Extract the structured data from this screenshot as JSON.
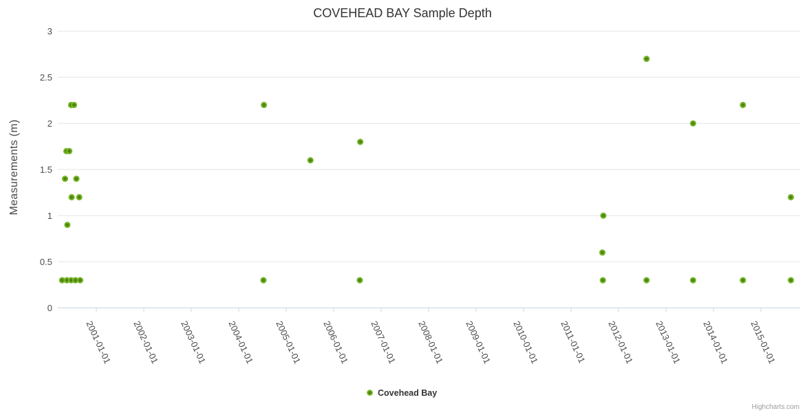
{
  "chart_data": {
    "type": "scatter",
    "title": "COVEHEAD BAY Sample Depth",
    "xlabel": "",
    "ylabel": "Measurements (m)",
    "xlim": [
      2000.2,
      2016.35
    ],
    "ylim": [
      0,
      3
    ],
    "grid": "horizontal-only",
    "legend_position": "bottom-center",
    "x_ticks": [
      {
        "year": 2001,
        "label": "2001-01-01"
      },
      {
        "year": 2002,
        "label": "2002-01-01"
      },
      {
        "year": 2003,
        "label": "2003-01-01"
      },
      {
        "year": 2004,
        "label": "2004-01-01"
      },
      {
        "year": 2005,
        "label": "2005-01-01"
      },
      {
        "year": 2006,
        "label": "2006-01-01"
      },
      {
        "year": 2007,
        "label": "2007-01-01"
      },
      {
        "year": 2008,
        "label": "2008-01-01"
      },
      {
        "year": 2009,
        "label": "2009-01-01"
      },
      {
        "year": 2010,
        "label": "2010-01-01"
      },
      {
        "year": 2011,
        "label": "2011-01-01"
      },
      {
        "year": 2012,
        "label": "2012-01-01"
      },
      {
        "year": 2013,
        "label": "2013-01-01"
      },
      {
        "year": 2014,
        "label": "2014-01-01"
      },
      {
        "year": 2015,
        "label": "2015-01-01"
      }
    ],
    "y_ticks": [
      {
        "value": 0,
        "label": "0"
      },
      {
        "value": 0.5,
        "label": "0.5"
      },
      {
        "value": 1,
        "label": "1"
      },
      {
        "value": 1.5,
        "label": "1.5"
      },
      {
        "value": 2,
        "label": "2"
      },
      {
        "value": 2.5,
        "label": "2.5"
      },
      {
        "value": 3,
        "label": "3"
      }
    ],
    "series": [
      {
        "name": "Covehead Bay",
        "color": "#78b928",
        "marker_center_color": "#45770b",
        "points": [
          [
            2000.28,
            0.3
          ],
          [
            2000.38,
            0.3
          ],
          [
            2000.47,
            0.3
          ],
          [
            2000.56,
            0.3
          ],
          [
            2000.66,
            0.3
          ],
          [
            2000.39,
            0.9
          ],
          [
            2000.48,
            1.2
          ],
          [
            2000.64,
            1.2
          ],
          [
            2000.34,
            1.4
          ],
          [
            2000.58,
            1.4
          ],
          [
            2000.37,
            1.7
          ],
          [
            2000.43,
            1.7
          ],
          [
            2000.47,
            2.2
          ],
          [
            2000.53,
            2.2
          ],
          [
            2004.52,
            0.3
          ],
          [
            2004.53,
            2.2
          ],
          [
            2005.51,
            1.6
          ],
          [
            2006.55,
            0.3
          ],
          [
            2006.56,
            1.8
          ],
          [
            2011.67,
            0.3
          ],
          [
            2011.66,
            0.6
          ],
          [
            2011.68,
            1.0
          ],
          [
            2012.59,
            0.3
          ],
          [
            2012.59,
            2.7
          ],
          [
            2013.57,
            0.3
          ],
          [
            2013.57,
            2.0
          ],
          [
            2014.62,
            0.3
          ],
          [
            2014.62,
            2.2
          ],
          [
            2015.63,
            0.3
          ],
          [
            2015.63,
            1.2
          ]
        ]
      }
    ],
    "legend": {
      "items": [
        {
          "label": "Covehead Bay",
          "marker": "circle-icon",
          "color": "#78b928"
        }
      ]
    },
    "credits": "Highcharts.com"
  },
  "colors": {
    "background": "#ffffff",
    "grid_line": "#e6e6e6",
    "axis_line": "#ccd6eb",
    "title_text": "#333333",
    "axis_label_text": "#4d4d4d",
    "legend_text": "#333333",
    "credits_text": "#9a9aa0",
    "series_green": "#78b928"
  }
}
